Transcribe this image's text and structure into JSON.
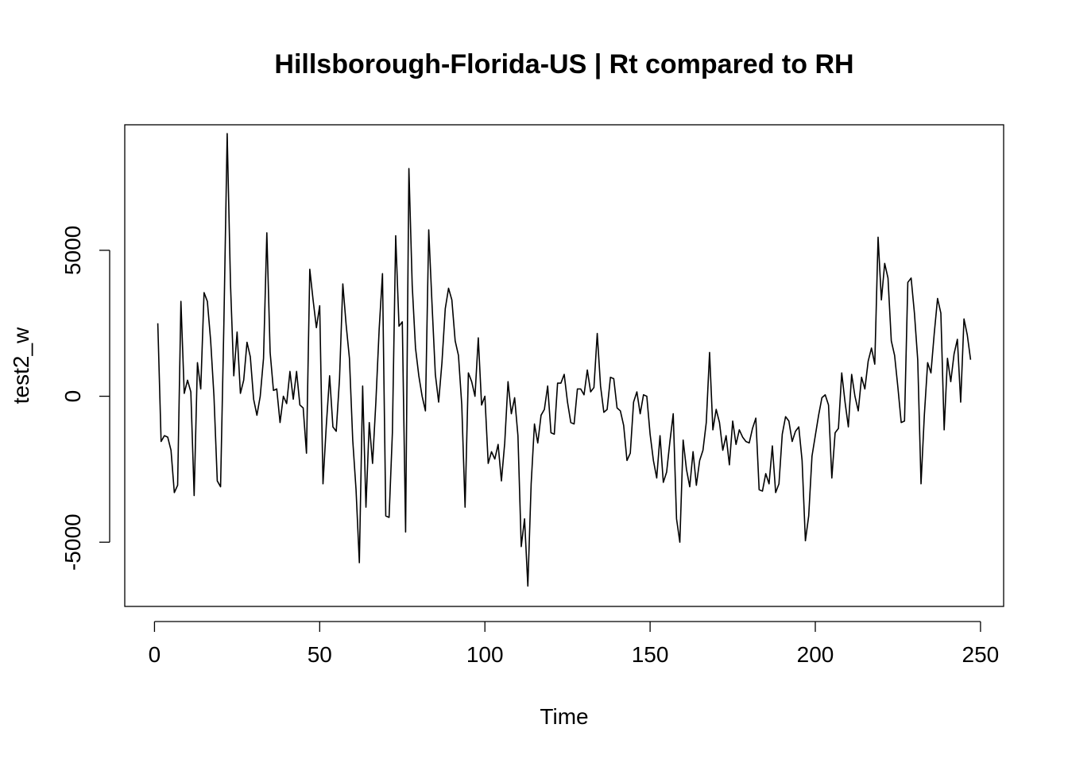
{
  "chart_data": {
    "type": "line",
    "title": "Hillsborough-Florida-US | Rt compared to RH",
    "xlabel": "Time",
    "ylabel": "test2_w",
    "xlim": [
      -9,
      257
    ],
    "ylim": [
      -7200,
      9300
    ],
    "x_ticks": [
      0,
      50,
      100,
      150,
      200,
      250
    ],
    "y_ticks": [
      -5000,
      0,
      5000
    ],
    "x_tick_labels": [
      "0",
      "50",
      "100",
      "150",
      "200",
      "250"
    ],
    "y_tick_labels": [
      "-5000",
      "0",
      "5000"
    ],
    "grid": false,
    "legend": "none",
    "series": [
      {
        "x_start": 1,
        "values": [
          2500,
          -1550,
          -1350,
          -1400,
          -1850,
          -3300,
          -3050,
          3250,
          100,
          550,
          150,
          -3400,
          1150,
          250,
          3550,
          3250,
          1900,
          0,
          -2900,
          -3100,
          2500,
          9000,
          3850,
          700,
          2200,
          100,
          550,
          1850,
          1350,
          -100,
          -650,
          0,
          1300,
          5600,
          1500,
          200,
          250,
          -900,
          0,
          -250,
          850,
          -100,
          850,
          -300,
          -400,
          -1950,
          4350,
          3300,
          2350,
          3100,
          -3000,
          -1000,
          700,
          -1050,
          -1200,
          600,
          3850,
          2450,
          1300,
          -1500,
          -3200,
          -5700,
          350,
          -3800,
          -900,
          -2300,
          -200,
          2300,
          4200,
          -4100,
          -4150,
          -1250,
          5500,
          2400,
          2550,
          -4650,
          7800,
          3800,
          1650,
          700,
          0,
          -500,
          5700,
          3150,
          750,
          -200,
          1150,
          3000,
          3700,
          3300,
          1900,
          1400,
          -300,
          -3800,
          800,
          500,
          0,
          2000,
          -300,
          0,
          -2300,
          -1900,
          -2150,
          -1650,
          -2900,
          -1600,
          500,
          -600,
          -50,
          -1350,
          -5150,
          -4200,
          -6500,
          -3000,
          -950,
          -1600,
          -650,
          -450,
          350,
          -1250,
          -1300,
          450,
          450,
          750,
          -200,
          -900,
          -950,
          250,
          250,
          50,
          900,
          150,
          300,
          2150,
          350,
          -550,
          -450,
          650,
          600,
          -400,
          -500,
          -1000,
          -2200,
          -1950,
          -200,
          150,
          -600,
          50,
          0,
          -1300,
          -2200,
          -2800,
          -1350,
          -2950,
          -2600,
          -1550,
          -600,
          -4200,
          -5000,
          -1500,
          -2500,
          -3100,
          -1900,
          -3050,
          -2200,
          -1850,
          -900,
          1500,
          -1150,
          -450,
          -900,
          -1850,
          -1350,
          -2350,
          -850,
          -1650,
          -1150,
          -1400,
          -1550,
          -1600,
          -1100,
          -750,
          -3200,
          -3250,
          -2650,
          -3000,
          -1700,
          -3300,
          -3000,
          -1300,
          -700,
          -850,
          -1550,
          -1200,
          -1050,
          -2200,
          -4950,
          -4100,
          -2050,
          -1350,
          -650,
          -50,
          50,
          -300,
          -2800,
          -1250,
          -1100,
          800,
          -200,
          -1050,
          750,
          0,
          -500,
          650,
          250,
          1200,
          1650,
          1100,
          5450,
          3300,
          4550,
          4050,
          1900,
          1400,
          300,
          -900,
          -850,
          3900,
          4050,
          2850,
          1250,
          -3000,
          -650,
          1150,
          800,
          2150,
          3350,
          2850,
          -1150,
          1300,
          500,
          1450,
          1950,
          -200,
          2650,
          2100,
          1250
        ]
      }
    ]
  }
}
